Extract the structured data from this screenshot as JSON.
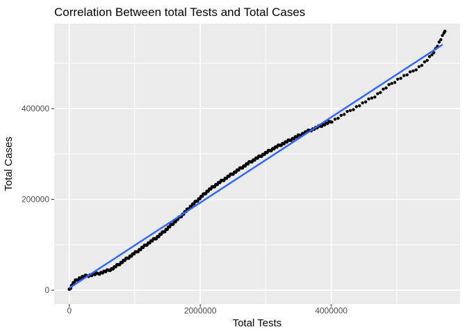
{
  "chart_data": {
    "type": "scatter",
    "title": "Correlation Between total Tests and Total Cases",
    "xlabel": "Total Tests",
    "ylabel": "Total Cases",
    "legend": "none",
    "grid": true,
    "panel_fill": "#EBEBEB",
    "grid_color": "#FFFFFF",
    "tick_color": "#333333",
    "tick_label_color": "#4D4D4D",
    "point_color": "#000000",
    "xlim": [
      -230000,
      5966000
    ],
    "ylim": [
      -30700,
      587000
    ],
    "x_ticks": {
      "values": [
        0,
        2000000,
        4000000
      ],
      "labels": [
        "0",
        "2000000",
        "4000000"
      ]
    },
    "y_ticks": {
      "values": [
        0,
        200000,
        400000
      ],
      "labels": [
        "0",
        "200000",
        "400000"
      ]
    },
    "x_minor": [
      1000000,
      3000000,
      5000000
    ],
    "y_minor": [
      100000,
      300000,
      500000
    ],
    "smooth_line": {
      "name": "linear-fit",
      "color": "#3366FF",
      "x": [
        0,
        5700000
      ],
      "y": [
        4600,
        541000
      ]
    },
    "series": [
      {
        "name": "total-cases-vs-total-tests",
        "points": [
          [
            0,
            0
          ],
          [
            37000,
            10700
          ],
          [
            90000,
            19900
          ],
          [
            154000,
            26100
          ],
          [
            239000,
            30700
          ],
          [
            345000,
            33700
          ],
          [
            451000,
            36800
          ],
          [
            557000,
            41400
          ],
          [
            663000,
            47500
          ],
          [
            769000,
            58200
          ],
          [
            875000,
            69000
          ],
          [
            981000,
            79700
          ],
          [
            1087000,
            90400
          ],
          [
            1215000,
            104200
          ],
          [
            1342000,
            116500
          ],
          [
            1469000,
            131800
          ],
          [
            1597000,
            148700
          ],
          [
            1724000,
            165500
          ],
          [
            1851000,
            183900
          ],
          [
            1979000,
            200800
          ],
          [
            2106000,
            217600
          ],
          [
            2233000,
            231400
          ],
          [
            2361000,
            243700
          ],
          [
            2488000,
            256000
          ],
          [
            2615000,
            268200
          ],
          [
            2743000,
            280500
          ],
          [
            2870000,
            291200
          ],
          [
            2997000,
            301900
          ],
          [
            3125000,
            312700
          ],
          [
            3252000,
            321900
          ],
          [
            3379000,
            331100
          ],
          [
            3506000,
            340300
          ],
          [
            3634000,
            349400
          ],
          [
            3761000,
            357100
          ],
          [
            3888000,
            364800
          ],
          [
            4016000,
            372400
          ],
          [
            4143000,
            383100
          ],
          [
            4270000,
            393900
          ],
          [
            4398000,
            404600
          ],
          [
            4525000,
            415300
          ],
          [
            4652000,
            426000
          ],
          [
            4780000,
            439900
          ],
          [
            4907000,
            453600
          ],
          [
            5034000,
            465900
          ],
          [
            5161000,
            475100
          ],
          [
            5267000,
            484300
          ],
          [
            5373000,
            495000
          ],
          [
            5458000,
            505800
          ],
          [
            5543000,
            519500
          ],
          [
            5607000,
            534800
          ],
          [
            5660000,
            548600
          ],
          [
            5702000,
            560900
          ],
          [
            5734000,
            570100
          ]
        ]
      }
    ]
  }
}
